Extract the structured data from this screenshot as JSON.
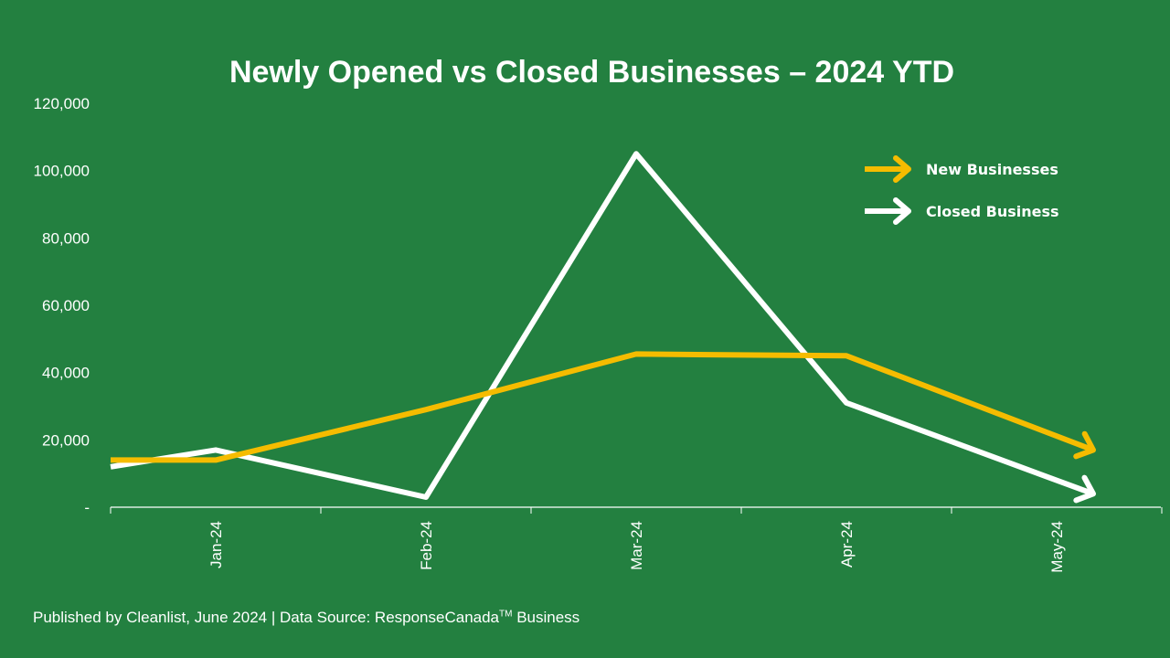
{
  "chart_data": {
    "type": "line",
    "title": "Newly Opened vs Closed Businesses – 2024 YTD",
    "categories": [
      "Jan-24",
      "Feb-24",
      "Mar-24",
      "Apr-24",
      "May-24"
    ],
    "x_start_value": 12000,
    "series": [
      {
        "name": "New Businesses",
        "color": "#F5BC00",
        "start_value": 14000,
        "values": [
          14000,
          29000,
          45500,
          45000,
          17000
        ]
      },
      {
        "name": "Closed Business",
        "color": "#FFFFFF",
        "start_value": 12000,
        "values": [
          17000,
          3000,
          105000,
          31000,
          4000
        ]
      }
    ],
    "ylim": [
      0,
      120000
    ],
    "yticks": [
      0,
      20000,
      40000,
      60000,
      80000,
      100000,
      120000
    ],
    "ytick_labels": [
      "-",
      "20,000",
      "40,000",
      "60,000",
      "80,000",
      "100,000",
      "120,000"
    ],
    "grid": false,
    "legend_position": "top-right"
  },
  "footer": {
    "text_before": "Published by Cleanlist, June 2024 | Data Source: ResponseCanada",
    "superscript": "TM",
    "text_after": " Business"
  },
  "colors": {
    "background": "#238040",
    "axis": "#FFFFFF"
  }
}
